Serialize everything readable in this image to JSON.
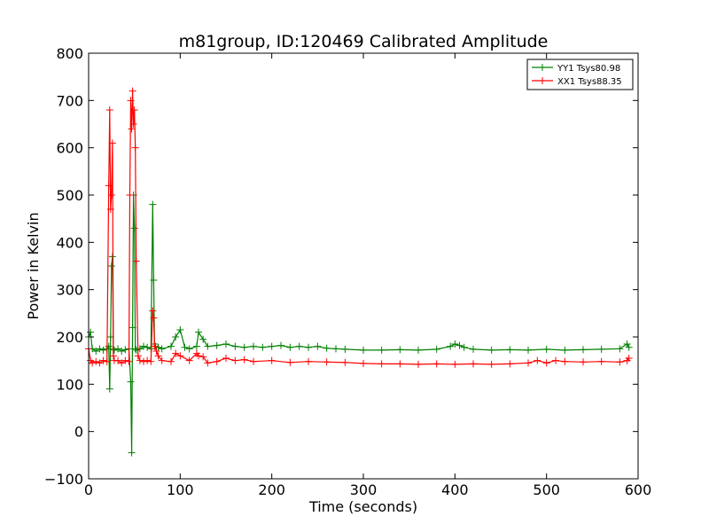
{
  "chart_data": {
    "type": "line",
    "title": "m81group, ID:120469 Calibrated Amplitude",
    "xlabel": "Time (seconds)",
    "ylabel": "Power in Kelvin",
    "xlim": [
      0,
      600
    ],
    "ylim": [
      -100,
      800
    ],
    "x_ticks": [
      0,
      100,
      200,
      300,
      400,
      500,
      600
    ],
    "y_ticks": [
      -100,
      0,
      100,
      200,
      300,
      400,
      500,
      600,
      700,
      800
    ],
    "grid": false,
    "legend_position": "top-right",
    "marker": "+",
    "series": [
      {
        "name": "YY1 Tsys80.98",
        "color": "#008000",
        "x": [
          0,
          2,
          4,
          8,
          12,
          16,
          20,
          22,
          23,
          24,
          25,
          26,
          27,
          28,
          32,
          36,
          40,
          44,
          46,
          47,
          48,
          49,
          50,
          51,
          52,
          56,
          60,
          64,
          68,
          70,
          71,
          72,
          73,
          76,
          80,
          90,
          95,
          100,
          105,
          110,
          118,
          120,
          125,
          130,
          140,
          150,
          160,
          170,
          180,
          190,
          200,
          210,
          220,
          230,
          240,
          250,
          260,
          270,
          280,
          300,
          320,
          340,
          360,
          380,
          395,
          400,
          405,
          410,
          420,
          440,
          460,
          480,
          500,
          520,
          540,
          560,
          580,
          588,
          590
        ],
        "values": [
          200,
          210,
          175,
          170,
          175,
          172,
          175,
          180,
          90,
          200,
          350,
          370,
          175,
          172,
          175,
          170,
          173,
          175,
          105,
          -45,
          220,
          500,
          430,
          175,
          172,
          175,
          180,
          178,
          175,
          480,
          320,
          185,
          180,
          178,
          175,
          180,
          200,
          215,
          178,
          175,
          180,
          210,
          195,
          180,
          182,
          185,
          180,
          178,
          180,
          178,
          180,
          182,
          178,
          180,
          178,
          180,
          176,
          175,
          174,
          172,
          172,
          173,
          172,
          174,
          180,
          185,
          182,
          178,
          174,
          172,
          173,
          172,
          174,
          172,
          173,
          174,
          175,
          185,
          178
        ]
      },
      {
        "name": "XX1 Tsys88.35",
        "color": "#ff0000",
        "x": [
          0,
          2,
          4,
          8,
          12,
          16,
          20,
          22,
          23,
          24,
          25,
          26,
          27,
          28,
          32,
          36,
          40,
          44,
          45,
          46,
          47,
          48,
          49,
          50,
          51,
          52,
          54,
          56,
          60,
          64,
          68,
          70,
          71,
          72,
          74,
          76,
          80,
          90,
          95,
          100,
          110,
          118,
          120,
          125,
          130,
          140,
          150,
          160,
          170,
          180,
          200,
          220,
          240,
          260,
          280,
          300,
          320,
          340,
          360,
          380,
          400,
          420,
          440,
          460,
          480,
          490,
          500,
          510,
          520,
          540,
          560,
          580,
          588,
          590
        ],
        "values": [
          175,
          150,
          145,
          148,
          145,
          150,
          148,
          520,
          680,
          470,
          500,
          610,
          160,
          150,
          150,
          145,
          150,
          148,
          500,
          700,
          640,
          720,
          650,
          680,
          600,
          360,
          160,
          150,
          148,
          150,
          148,
          255,
          240,
          180,
          170,
          160,
          150,
          148,
          165,
          160,
          150,
          165,
          160,
          158,
          145,
          148,
          155,
          150,
          152,
          148,
          150,
          146,
          148,
          147,
          146,
          144,
          143,
          143,
          142,
          143,
          142,
          143,
          142,
          143,
          145,
          150,
          145,
          150,
          148,
          147,
          148,
          147,
          150,
          155
        ]
      }
    ]
  }
}
